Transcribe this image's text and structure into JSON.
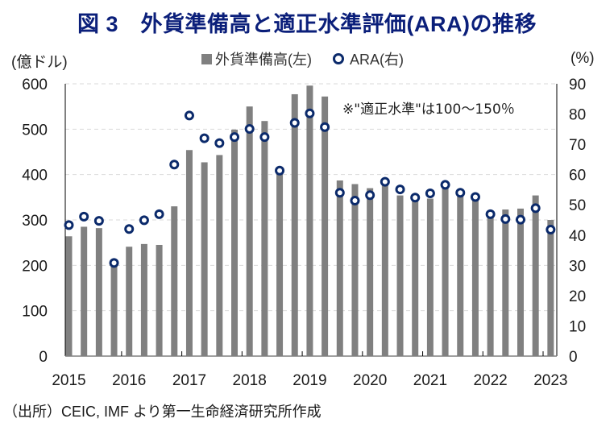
{
  "title": "図 3　外貨準備高と適正水準評価(ARA)の推移",
  "source": "（出所）CEIC, IMF より第一生命経済研究所作成",
  "chart_data": {
    "type": "bar+scatter",
    "title": "図 3　外貨準備高と適正水準評価(ARA)の推移",
    "left_axis_label": "(億ドル)",
    "right_axis_label": "(%)",
    "ylim_left": [
      0,
      600
    ],
    "yticks_left": [
      0,
      100,
      200,
      300,
      400,
      500,
      600
    ],
    "ylim_right": [
      0,
      90
    ],
    "yticks_right": [
      0,
      10,
      20,
      30,
      40,
      50,
      60,
      70,
      80,
      90
    ],
    "x_tick_labels": [
      "2015",
      "2016",
      "2017",
      "2018",
      "2019",
      "2020",
      "2021",
      "2022",
      "2023"
    ],
    "grid": "horizontal dashed",
    "legend_position": "top-center",
    "annotation": "※\"適正水準\"は100～150％",
    "categories": [
      "2015Q1",
      "2015Q2",
      "2015Q3",
      "2015Q4",
      "2016Q1",
      "2016Q2",
      "2016Q3",
      "2016Q4",
      "2017Q1",
      "2017Q2",
      "2017Q3",
      "2017Q4",
      "2018Q1",
      "2018Q2",
      "2018Q3",
      "2018Q4",
      "2019Q1",
      "2019Q2",
      "2019Q3",
      "2019Q4",
      "2020Q1",
      "2020Q2",
      "2020Q3",
      "2020Q4",
      "2021Q1",
      "2021Q2",
      "2021Q3",
      "2021Q4",
      "2022Q1",
      "2022Q2",
      "2022Q3",
      "2022Q4",
      "2023Q1"
    ],
    "series": [
      {
        "name": "外貨準備高(左)",
        "type": "bar",
        "axis": "left",
        "color": "#808080",
        "values": [
          264,
          285,
          282,
          203,
          241,
          247,
          245,
          330,
          454,
          427,
          443,
          499,
          550,
          518,
          407,
          577,
          596,
          572,
          387,
          379,
          370,
          382,
          354,
          344,
          347,
          376,
          356,
          344,
          317,
          323,
          325,
          354,
          300
        ]
      },
      {
        "name": "ARA(右)",
        "type": "scatter",
        "axis": "right",
        "color": "#0b2a6b",
        "values": [
          43.3,
          46.1,
          44.7,
          30.8,
          42.0,
          44.9,
          46.9,
          63.3,
          79.5,
          72.0,
          70.4,
          72.4,
          75.1,
          72.4,
          61.3,
          77.1,
          80.2,
          75.7,
          54.0,
          51.4,
          53.2,
          57.6,
          55.1,
          52.4,
          53.8,
          56.6,
          54.0,
          52.6,
          46.9,
          45.3,
          45.1,
          48.9,
          41.8
        ]
      }
    ]
  }
}
